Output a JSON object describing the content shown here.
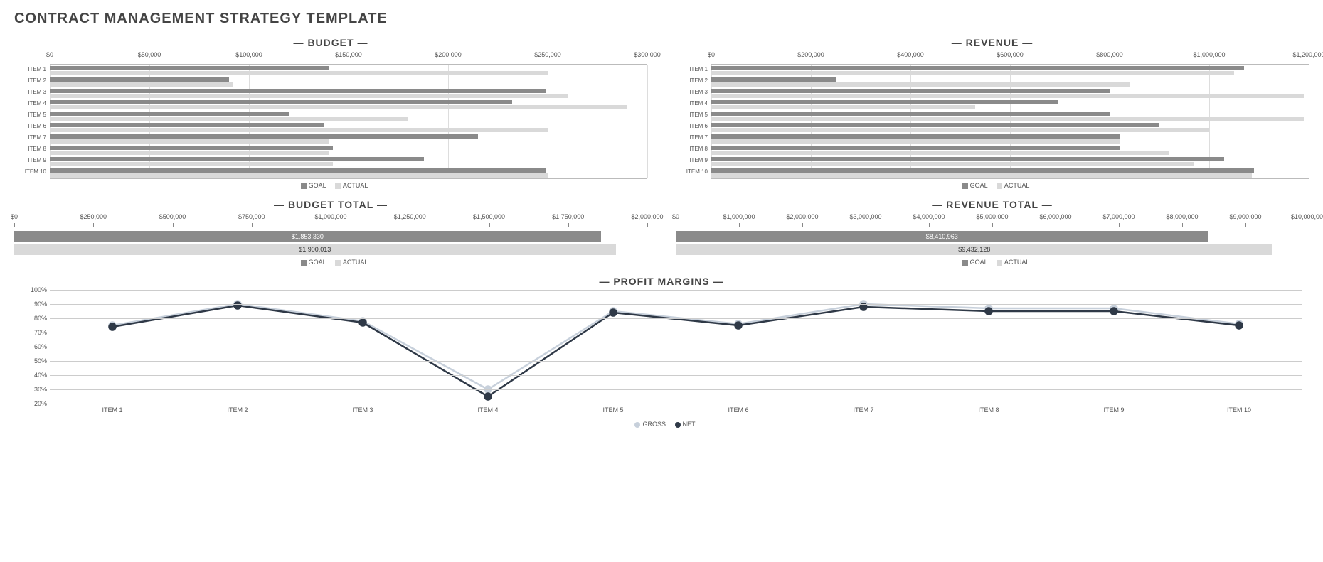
{
  "page_title": "CONTRACT MANAGEMENT STRATEGY TEMPLATE",
  "colors": {
    "goal": "#8a8a8a",
    "actual": "#d9d9d9",
    "gross_line": "#c7d0db",
    "net_line": "#2f3947",
    "grid": "#dddddd",
    "background": "#ffffff"
  },
  "items": [
    "ITEM 1",
    "ITEM 2",
    "ITEM 3",
    "ITEM 4",
    "ITEM 5",
    "ITEM 6",
    "ITEM 7",
    "ITEM 8",
    "ITEM 9",
    "ITEM 10"
  ],
  "budget": {
    "title": "BUDGET",
    "type": "hbar",
    "x_max": 300000,
    "x_step": 50000,
    "x_ticks": [
      "$0",
      "$50,000",
      "$100,000",
      "$150,000",
      "$200,000",
      "$250,000",
      "$300,000"
    ],
    "goal": [
      140000,
      90000,
      249000,
      232000,
      120000,
      138000,
      215000,
      142000,
      188000,
      249000
    ],
    "actual": [
      250000,
      92000,
      260000,
      290000,
      180000,
      250000,
      140000,
      140000,
      142000,
      250000
    ],
    "legend": [
      "GOAL",
      "ACTUAL"
    ]
  },
  "revenue": {
    "title": "REVENUE",
    "type": "hbar",
    "x_max": 1200000,
    "x_step": 200000,
    "x_ticks": [
      "$0",
      "$200,000",
      "$400,000",
      "$600,000",
      "$800,000",
      "$1,000,000",
      "$1,200,000"
    ],
    "goal": [
      1070000,
      250000,
      800000,
      695000,
      800000,
      900000,
      820000,
      820000,
      1030000,
      1090000
    ],
    "actual": [
      1050000,
      840000,
      1190000,
      530000,
      1190000,
      1000000,
      820000,
      920000,
      970000,
      1085000
    ],
    "legend": [
      "GOAL",
      "ACTUAL"
    ]
  },
  "budget_total": {
    "title": "BUDGET TOTAL",
    "type": "hbar-single",
    "x_max": 2000000,
    "x_step": 250000,
    "x_ticks": [
      "$0",
      "$250,000",
      "$500,000",
      "$750,000",
      "$1,000,000",
      "$1,250,000",
      "$1,500,000",
      "$1,750,000",
      "$2,000,000"
    ],
    "goal": 1853330,
    "goal_label": "$1,853,330",
    "actual": 1900013,
    "actual_label": "$1,900,013",
    "legend": [
      "GOAL",
      "ACTUAL"
    ]
  },
  "revenue_total": {
    "title": "REVENUE TOTAL",
    "type": "hbar-single",
    "x_max": 10000000,
    "x_step": 1000000,
    "x_ticks": [
      "$0",
      "$1,000,000",
      "$2,000,000",
      "$3,000,000",
      "$4,000,000",
      "$5,000,000",
      "$6,000,000",
      "$7,000,000",
      "$8,000,000",
      "$9,000,000",
      "$10,000,000"
    ],
    "goal": 8410963,
    "goal_label": "$8,410,963",
    "actual": 9432128,
    "actual_label": "$9,432,128",
    "legend": [
      "GOAL",
      "ACTUAL"
    ]
  },
  "profit_margins": {
    "title": "PROFIT MARGINS",
    "type": "line",
    "y_min": 20,
    "y_max": 100,
    "y_step": 10,
    "y_ticks": [
      "20%",
      "30%",
      "40%",
      "50%",
      "60%",
      "70%",
      "80%",
      "90%",
      "100%"
    ],
    "gross": [
      75,
      90,
      78,
      30,
      85,
      76,
      90,
      87,
      87,
      76
    ],
    "net": [
      74,
      89,
      77,
      25,
      84,
      75,
      88,
      85,
      85,
      75
    ],
    "marker_radius": 5,
    "line_width": 2.5,
    "legend": [
      "GROSS",
      "NET"
    ]
  },
  "legend_labels": {
    "goal": "GOAL",
    "actual": "ACTUAL",
    "gross": "GROSS",
    "net": "NET"
  }
}
